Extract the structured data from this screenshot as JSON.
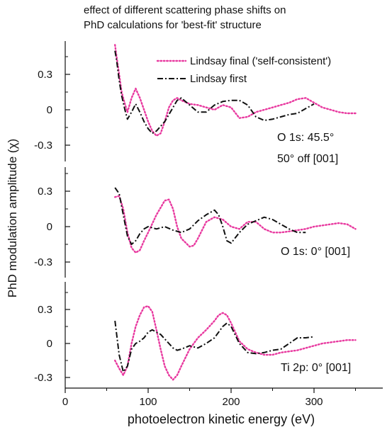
{
  "chart_data": {
    "type": "line",
    "title": "effect of different scattering phase shifts on",
    "subtitle": "PhD calculations for 'best-fit' structure",
    "xlabel": "photoelectron kinetic energy (eV)",
    "ylabel": "PhD modulation amplitude (χ)",
    "xlim": [
      0,
      360
    ],
    "x_ticks": [
      0,
      100,
      200,
      300
    ],
    "x_tick_labels": [
      "0",
      "100",
      "200",
      "300"
    ],
    "legend": {
      "placement": "top-right",
      "entries": [
        "Lindsay final ('self-consistent')",
        "Lindsay first"
      ]
    },
    "colors": {
      "final": "#e8399f",
      "first": "#111111"
    },
    "grid": false,
    "panels": [
      {
        "label_lines": [
          "O 1s: 45.5°",
          "50° off  [001]"
        ],
        "ylim": [
          -0.5,
          0.55
        ],
        "y_ticks": [
          0.3,
          0,
          -0.3
        ],
        "y_tick_labels": [
          "0.3",
          "0",
          "-0.3"
        ],
        "series": [
          {
            "name": "Lindsay final ('self-consistent')",
            "style": "dotted",
            "x": [
              60,
              62,
              65,
              68,
              72,
              75,
              80,
              85,
              90,
              95,
              100,
              105,
              110,
              115,
              120,
              125,
              130,
              135,
              140,
              150,
              160,
              170,
              180,
              190,
              200,
              210,
              220,
              230,
              240,
              250,
              260,
              270,
              280,
              290,
              300,
              310,
              320,
              330,
              340,
              350
            ],
            "y": [
              0.55,
              0.45,
              0.3,
              0.15,
              0.05,
              -0.02,
              0.1,
              0.18,
              0.1,
              0,
              -0.1,
              -0.18,
              -0.22,
              -0.2,
              -0.1,
              0.02,
              0.08,
              0.1,
              0.08,
              0.05,
              0.04,
              0.02,
              0.0,
              0.04,
              0.02,
              -0.07,
              -0.06,
              -0.02,
              0.0,
              0.02,
              0.04,
              0.06,
              0.09,
              0.1,
              0.06,
              0.02,
              0.0,
              -0.02,
              -0.03,
              -0.03
            ]
          },
          {
            "name": "Lindsay first",
            "style": "dashdot",
            "x": [
              60,
              62,
              65,
              68,
              72,
              75,
              80,
              85,
              90,
              95,
              100,
              105,
              110,
              115,
              120,
              125,
              130,
              135,
              140,
              150,
              160,
              170,
              180,
              190,
              200,
              210,
              220,
              230,
              240,
              250,
              260,
              270,
              280,
              290,
              300
            ],
            "y": [
              0.5,
              0.42,
              0.25,
              0.12,
              0.0,
              -0.08,
              -0.02,
              0.05,
              -0.02,
              -0.1,
              -0.16,
              -0.2,
              -0.18,
              -0.14,
              -0.1,
              -0.04,
              0.02,
              0.08,
              0.1,
              0.04,
              -0.02,
              -0.02,
              0.04,
              0.07,
              0.08,
              0.08,
              0.04,
              -0.06,
              -0.09,
              -0.08,
              -0.06,
              -0.04,
              -0.03,
              0.01,
              0.05
            ]
          }
        ]
      },
      {
        "label_lines": [
          "O 1s: 0°  [001]"
        ],
        "ylim": [
          -0.4,
          0.45
        ],
        "y_ticks": [
          0.3,
          0,
          -0.3
        ],
        "y_tick_labels": [
          "0.3",
          "0",
          "-0.3"
        ],
        "series": [
          {
            "name": "Lindsay final ('self-consistent')",
            "style": "dotted",
            "x": [
              60,
              65,
              70,
              75,
              80,
              85,
              90,
              95,
              100,
              110,
              120,
              125,
              130,
              135,
              140,
              150,
              155,
              160,
              170,
              180,
              190,
              200,
              210,
              220,
              230,
              240,
              250,
              260,
              270,
              280,
              290,
              300,
              310,
              320,
              330,
              340,
              350
            ],
            "y": [
              0.25,
              0.26,
              0.15,
              -0.05,
              -0.18,
              -0.22,
              -0.2,
              -0.12,
              -0.05,
              0.1,
              0.22,
              0.23,
              0.15,
              0.0,
              -0.1,
              -0.17,
              -0.16,
              -0.1,
              0.04,
              0.08,
              0.06,
              0.0,
              -0.02,
              0.04,
              0.04,
              -0.02,
              -0.05,
              -0.05,
              -0.04,
              -0.03,
              -0.02,
              0.0,
              0.01,
              0.02,
              0.03,
              0.02,
              -0.02
            ]
          },
          {
            "name": "Lindsay first",
            "style": "dashdot",
            "x": [
              60,
              65,
              70,
              75,
              80,
              85,
              90,
              95,
              100,
              110,
              120,
              130,
              140,
              150,
              160,
              170,
              180,
              185,
              190,
              195,
              200,
              210,
              220,
              230,
              240,
              250,
              260,
              270,
              280,
              290
            ],
            "y": [
              0.33,
              0.28,
              0.1,
              -0.08,
              -0.15,
              -0.12,
              -0.06,
              -0.02,
              0.0,
              -0.02,
              0.0,
              -0.03,
              -0.05,
              -0.02,
              0.05,
              0.1,
              0.14,
              0.1,
              0.0,
              -0.12,
              -0.14,
              -0.05,
              0.02,
              0.05,
              0.08,
              0.06,
              0.02,
              -0.02,
              -0.05,
              -0.05
            ]
          }
        ]
      },
      {
        "label_lines": [
          "Ti 2p: 0°  [001]"
        ],
        "ylim": [
          -0.33,
          0.45
        ],
        "y_ticks": [
          0.3,
          0,
          -0.3
        ],
        "y_tick_labels": [
          "0.3",
          "0",
          "-0.3"
        ],
        "series": [
          {
            "name": "Lindsay final ('self-consistent')",
            "style": "dotted",
            "x": [
              60,
              65,
              70,
              75,
              80,
              85,
              90,
              95,
              100,
              105,
              110,
              115,
              120,
              125,
              130,
              135,
              140,
              150,
              160,
              170,
              180,
              185,
              190,
              195,
              200,
              210,
              220,
              230,
              240,
              250,
              260,
              270,
              280,
              290,
              300,
              310,
              320,
              330,
              340,
              350
            ],
            "y": [
              -0.15,
              -0.22,
              -0.28,
              -0.2,
              0.0,
              0.15,
              0.25,
              0.32,
              0.33,
              0.28,
              0.12,
              -0.05,
              -0.2,
              -0.28,
              -0.32,
              -0.28,
              -0.2,
              -0.05,
              0.05,
              0.12,
              0.2,
              0.25,
              0.27,
              0.25,
              0.18,
              0.02,
              -0.05,
              -0.08,
              -0.1,
              -0.1,
              -0.08,
              -0.07,
              -0.06,
              -0.04,
              -0.02,
              0.0,
              0.01,
              0.02,
              0.03,
              0.03
            ]
          },
          {
            "name": "Lindsay first",
            "style": "dashdot",
            "x": [
              60,
              65,
              70,
              75,
              80,
              85,
              90,
              95,
              100,
              105,
              110,
              115,
              120,
              125,
              130,
              135,
              140,
              150,
              160,
              170,
              180,
              190,
              195,
              200,
              210,
              220,
              230,
              240,
              250,
              260,
              270,
              280,
              290,
              300
            ],
            "y": [
              0.2,
              -0.1,
              -0.25,
              -0.2,
              -0.05,
              0.0,
              0.02,
              0.05,
              0.1,
              0.12,
              0.1,
              0.08,
              0.04,
              0.0,
              -0.04,
              -0.06,
              -0.05,
              -0.02,
              -0.04,
              0.0,
              0.05,
              0.15,
              0.18,
              0.15,
              0.0,
              -0.08,
              -0.09,
              -0.08,
              -0.06,
              -0.05,
              0.0,
              0.05,
              0.05,
              0.06
            ]
          }
        ]
      }
    ]
  }
}
